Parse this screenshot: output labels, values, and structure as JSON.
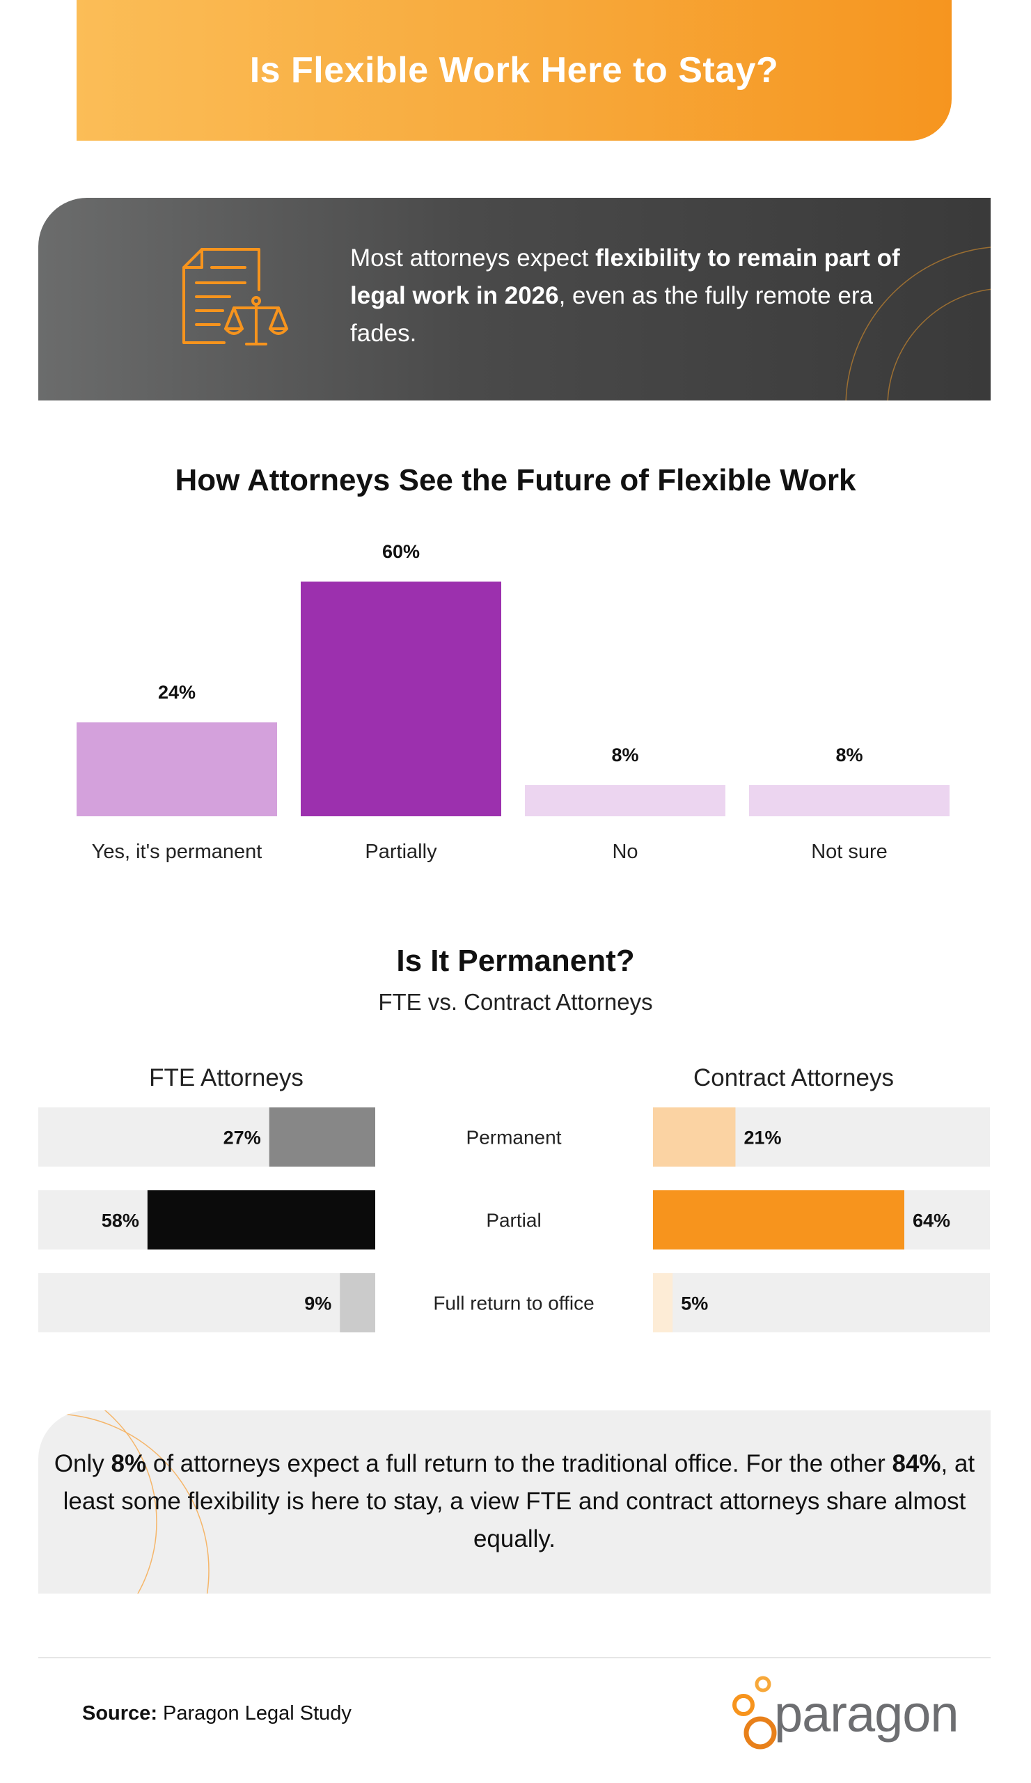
{
  "header": {
    "title": "Is Flexible Work Here to Stay?"
  },
  "intro": {
    "part1": "Most attorneys expect ",
    "bold": "flexibility to remain part of legal work in 2026",
    "part2": ", even as the fully remote era fades.",
    "icon": "legal-document-scales-icon"
  },
  "chart_data": [
    {
      "type": "bar",
      "title": "How Attorneys See the Future of Flexible Work",
      "categories": [
        "Yes, it's permanent",
        "Partially",
        "No",
        "Not sure"
      ],
      "values": [
        24,
        60,
        8,
        8
      ],
      "value_labels": [
        "24%",
        "60%",
        "8%",
        "8%"
      ],
      "colors": [
        "#d4a1dc",
        "#9c30ae",
        "#ecd5f0",
        "#ecd5f0"
      ],
      "ylim": [
        0,
        60
      ],
      "grid": false
    },
    {
      "type": "bar",
      "orientation": "horizontal",
      "title": "Is It Permanent?",
      "subtitle": "FTE vs. Contract Attorneys",
      "categories": [
        "Permanent",
        "Partial",
        "Full return to office"
      ],
      "series": [
        {
          "name": "FTE Attorneys",
          "values": [
            27,
            58,
            9
          ],
          "value_labels": [
            "27%",
            "58%",
            "9%"
          ],
          "colors": [
            "#878787",
            "#0b0b0b",
            "#cbcbcb"
          ]
        },
        {
          "name": "Contract Attorneys",
          "values": [
            21,
            64,
            5
          ],
          "value_labels": [
            "21%",
            "64%",
            "5%"
          ],
          "colors": [
            "#fbd3a3",
            "#f7941d",
            "#fdecd6"
          ]
        }
      ],
      "xlim": [
        0,
        80
      ],
      "track_color": "#efefef"
    }
  ],
  "summary": {
    "part1": "Only ",
    "bold1": "8%",
    "part2": " of attorneys expect a full return to the traditional office. For the other ",
    "bold2": "84%",
    "part3": ", at least some flexibility is here to stay, a view FTE and contract attorneys share almost equally."
  },
  "footer": {
    "source_label": "Source:",
    "source_text": " Paragon Legal Study",
    "logo_text": "paragon"
  },
  "colors": {
    "accent": "#f7941d",
    "purple": "#9c30ae"
  }
}
